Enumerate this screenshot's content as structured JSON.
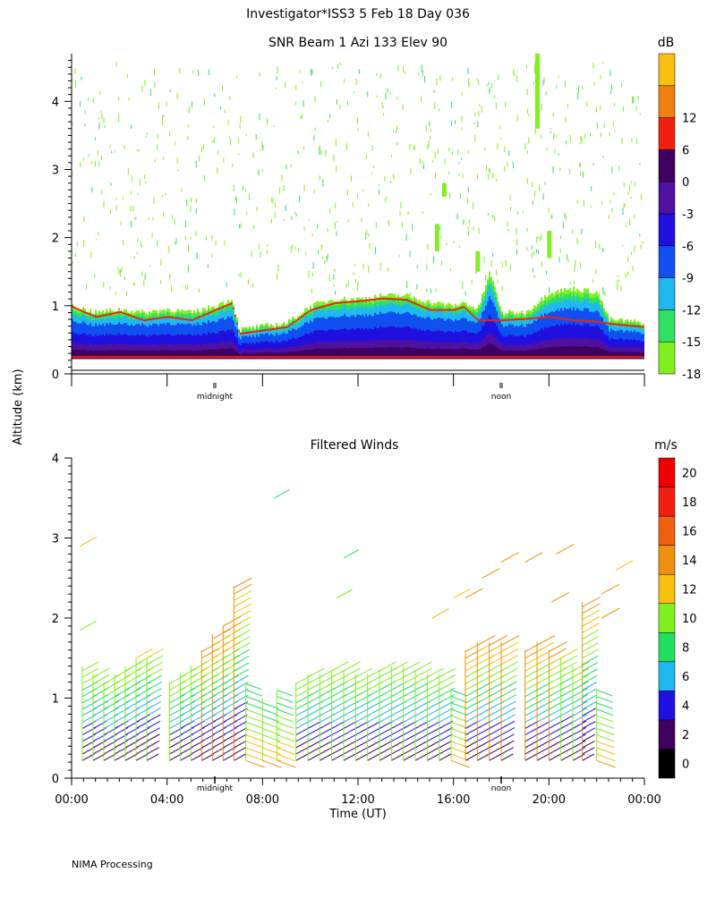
{
  "header": {
    "title": "Investigator*ISS3    5 Feb 18 Day 036"
  },
  "y_axis_label": "Altitude (km)",
  "footer": "NIMA Processing",
  "chart_data": [
    {
      "type": "heatmap",
      "title": "SNR Beam 1 Azi 133 Elev 90",
      "xlabel": "",
      "ylabel": "Altitude (km)",
      "xlim": [
        0,
        24
      ],
      "ylim": [
        0,
        4.7
      ],
      "y_ticks": [
        "0",
        "1",
        "2",
        "3",
        "4"
      ],
      "x_markers": [
        {
          "label": "midnight",
          "x": 6
        },
        {
          "label": "noon",
          "x": 18
        }
      ],
      "colorbar": {
        "unit": "dB",
        "labels": [
          "-18",
          "-15",
          "-12",
          "-9",
          "-6",
          "-3",
          "0",
          "6",
          "12"
        ],
        "colors": [
          "#80f020",
          "#30e060",
          "#20b8f0",
          "#1050f0",
          "#2010e0",
          "#5010a0",
          "#400060",
          "#f02010",
          "#f08010",
          "#f8c010"
        ]
      },
      "profile": {
        "x": [
          0.0,
          0.5,
          1.0,
          2.0,
          3.0,
          4.0,
          5.0,
          6.0,
          6.7,
          7.0,
          8.0,
          9.0,
          10.0,
          11.0,
          12.0,
          13.0,
          14.0,
          15.0,
          16.0,
          16.4,
          17.0,
          17.5,
          18.0,
          19.0,
          20.0,
          21.0,
          22.0,
          22.5,
          24.0
        ],
        "top": [
          1.0,
          0.95,
          0.9,
          0.95,
          0.9,
          0.95,
          0.9,
          1.0,
          1.1,
          0.65,
          0.7,
          0.75,
          1.0,
          1.1,
          1.1,
          1.15,
          1.15,
          1.05,
          1.0,
          1.05,
          0.95,
          1.5,
          0.9,
          0.9,
          1.2,
          1.25,
          1.2,
          0.8,
          0.75
        ],
        "red_band": [
          1.0,
          0.92,
          0.85,
          0.92,
          0.8,
          0.85,
          0.8,
          0.95,
          1.05,
          0.6,
          0.65,
          0.7,
          0.95,
          1.05,
          1.08,
          1.12,
          1.1,
          0.95,
          0.95,
          1.0,
          0.8,
          0.8,
          0.8,
          0.82,
          0.85,
          0.8,
          0.78,
          0.75,
          0.7
        ]
      },
      "features": [
        {
          "x": 19.5,
          "y0": 3.6,
          "y1": 4.7
        },
        {
          "x": 15.6,
          "y0": 2.6,
          "y1": 2.8
        },
        {
          "x": 15.3,
          "y0": 1.8,
          "y1": 2.2
        },
        {
          "x": 20.0,
          "y0": 1.7,
          "y1": 2.1
        },
        {
          "x": 17.0,
          "y0": 1.5,
          "y1": 1.8
        }
      ]
    },
    {
      "type": "scatter",
      "title": "Filtered Winds",
      "xlabel": "Time (UT)",
      "ylabel": "Altitude (km)",
      "xlim": [
        0,
        24
      ],
      "ylim": [
        0,
        4
      ],
      "x_ticks": [
        "00:00",
        "04:00",
        "08:00",
        "12:00",
        "16:00",
        "20:00",
        "00:00"
      ],
      "y_ticks": [
        "0",
        "1",
        "2",
        "3",
        "4"
      ],
      "x_markers": [
        {
          "label": "midnight",
          "x": 6
        },
        {
          "label": "noon",
          "x": 18
        }
      ],
      "colorbar": {
        "unit": "m/s",
        "labels": [
          "0",
          "2",
          "4",
          "6",
          "8",
          "10",
          "12",
          "14",
          "16",
          "18",
          "20"
        ],
        "colors": [
          "#000000",
          "#400060",
          "#2010e0",
          "#20b8f0",
          "#20e060",
          "#80f020",
          "#f8c010",
          "#f09010",
          "#f06010",
          "#f02010",
          "#f00000"
        ]
      },
      "profiles": [
        {
          "x": 0.45,
          "top": 1.4,
          "dir": 1
        },
        {
          "x": 0.9,
          "top": 1.3,
          "dir": 1
        },
        {
          "x": 1.35,
          "top": 1.2,
          "dir": 1
        },
        {
          "x": 1.8,
          "top": 1.3,
          "dir": 1
        },
        {
          "x": 2.25,
          "top": 1.4,
          "dir": 1
        },
        {
          "x": 2.7,
          "top": 1.5,
          "dir": 1
        },
        {
          "x": 3.15,
          "top": 1.5,
          "dir": 1
        },
        {
          "x": 4.1,
          "top": 1.2,
          "dir": 1
        },
        {
          "x": 4.55,
          "top": 1.3,
          "dir": 1
        },
        {
          "x": 5.0,
          "top": 1.4,
          "dir": 1
        },
        {
          "x": 5.45,
          "top": 1.6,
          "dir": 1
        },
        {
          "x": 5.9,
          "top": 1.8,
          "dir": 1
        },
        {
          "x": 6.35,
          "top": 1.9,
          "dir": 1
        },
        {
          "x": 6.8,
          "top": 2.4,
          "dir": 1
        },
        {
          "x": 7.3,
          "top": 1.2,
          "dir": -1
        },
        {
          "x": 8.0,
          "top": 1.0,
          "dir": -1
        },
        {
          "x": 8.6,
          "top": 1.1,
          "dir": -1
        },
        {
          "x": 9.4,
          "top": 1.2,
          "dir": 1
        },
        {
          "x": 9.9,
          "top": 1.3,
          "dir": 1
        },
        {
          "x": 10.4,
          "top": 1.3,
          "dir": 1
        },
        {
          "x": 10.9,
          "top": 1.35,
          "dir": 1
        },
        {
          "x": 11.4,
          "top": 1.35,
          "dir": 1
        },
        {
          "x": 11.9,
          "top": 1.3,
          "dir": 1
        },
        {
          "x": 12.4,
          "top": 1.3,
          "dir": 1
        },
        {
          "x": 12.9,
          "top": 1.35,
          "dir": 1
        },
        {
          "x": 13.4,
          "top": 1.4,
          "dir": 1
        },
        {
          "x": 13.9,
          "top": 1.4,
          "dir": 1
        },
        {
          "x": 14.4,
          "top": 1.35,
          "dir": 1
        },
        {
          "x": 14.9,
          "top": 1.3,
          "dir": 1
        },
        {
          "x": 15.4,
          "top": 1.3,
          "dir": 1
        },
        {
          "x": 15.9,
          "top": 1.1,
          "dir": -1
        },
        {
          "x": 16.5,
          "top": 1.6,
          "dir": 1
        },
        {
          "x": 17.0,
          "top": 1.7,
          "dir": 1
        },
        {
          "x": 17.5,
          "top": 1.7,
          "dir": 1
        },
        {
          "x": 18.0,
          "top": 1.7,
          "dir": 1
        },
        {
          "x": 19.0,
          "top": 1.6,
          "dir": 1
        },
        {
          "x": 19.5,
          "top": 1.7,
          "dir": 1
        },
        {
          "x": 20.0,
          "top": 1.6,
          "dir": 1
        },
        {
          "x": 20.5,
          "top": 1.5,
          "dir": 1
        },
        {
          "x": 21.0,
          "top": 1.4,
          "dir": 1
        },
        {
          "x": 21.4,
          "top": 2.2,
          "dir": 1
        },
        {
          "x": 22.0,
          "top": 1.1,
          "dir": -1
        }
      ],
      "isolated": [
        {
          "x": 0.35,
          "y": 2.9,
          "speed": 12
        },
        {
          "x": 0.35,
          "y": 1.85,
          "speed": 11
        },
        {
          "x": 8.5,
          "y": 3.5,
          "speed": 9
        },
        {
          "x": 11.4,
          "y": 2.75,
          "speed": 9
        },
        {
          "x": 11.1,
          "y": 2.25,
          "speed": 10
        },
        {
          "x": 15.1,
          "y": 2.0,
          "speed": 13
        },
        {
          "x": 16.0,
          "y": 2.25,
          "speed": 13
        },
        {
          "x": 16.5,
          "y": 2.25,
          "speed": 14
        },
        {
          "x": 17.2,
          "y": 2.5,
          "speed": 14
        },
        {
          "x": 18.0,
          "y": 2.7,
          "speed": 14
        },
        {
          "x": 19.0,
          "y": 2.7,
          "speed": 14
        },
        {
          "x": 20.3,
          "y": 2.8,
          "speed": 14
        },
        {
          "x": 20.1,
          "y": 2.2,
          "speed": 14
        },
        {
          "x": 22.2,
          "y": 2.3,
          "speed": 14
        },
        {
          "x": 22.2,
          "y": 2.0,
          "speed": 15
        },
        {
          "x": 22.8,
          "y": 2.6,
          "speed": 13
        }
      ]
    }
  ]
}
